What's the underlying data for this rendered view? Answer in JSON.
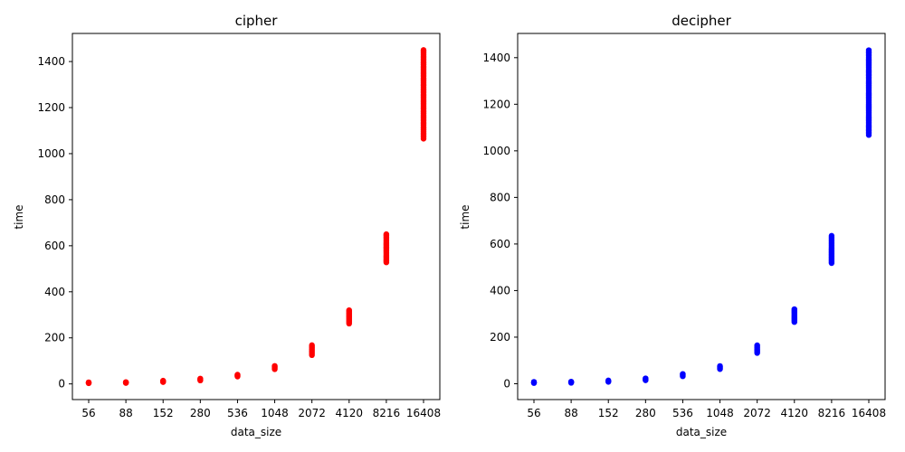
{
  "chart_data": [
    {
      "type": "scatter",
      "title": "cipher",
      "xlabel": "data_size",
      "ylabel": "time",
      "color": "#ff0000",
      "x_categories": [
        "56",
        "88",
        "152",
        "280",
        "536",
        "1048",
        "2072",
        "4120",
        "8216",
        "16408"
      ],
      "y_ticks": [
        "0",
        "200",
        "400",
        "600",
        "800",
        "1000",
        "1200",
        "1400"
      ],
      "ylim": [
        -68,
        1522
      ],
      "grid": false,
      "points_ranges": [
        {
          "x": "56",
          "y_min": 3,
          "y_max": 7
        },
        {
          "x": "88",
          "y_min": 4,
          "y_max": 8
        },
        {
          "x": "152",
          "y_min": 8,
          "y_max": 14
        },
        {
          "x": "280",
          "y_min": 15,
          "y_max": 23
        },
        {
          "x": "536",
          "y_min": 32,
          "y_max": 40
        },
        {
          "x": "1048",
          "y_min": 64,
          "y_max": 78
        },
        {
          "x": "2072",
          "y_min": 125,
          "y_max": 168
        },
        {
          "x": "4120",
          "y_min": 262,
          "y_max": 320
        },
        {
          "x": "8216",
          "y_min": 528,
          "y_max": 650
        },
        {
          "x": "16408",
          "y_min": 1065,
          "y_max": 1450
        }
      ]
    },
    {
      "type": "scatter",
      "title": "decipher",
      "xlabel": "data_size",
      "ylabel": "time",
      "color": "#0000ff",
      "x_categories": [
        "56",
        "88",
        "152",
        "280",
        "536",
        "1048",
        "2072",
        "4120",
        "8216",
        "16408"
      ],
      "y_ticks": [
        "0",
        "200",
        "400",
        "600",
        "800",
        "1000",
        "1200",
        "1400"
      ],
      "ylim": [
        -68,
        1504
      ],
      "grid": false,
      "points_ranges": [
        {
          "x": "56",
          "y_min": 3,
          "y_max": 8
        },
        {
          "x": "88",
          "y_min": 4,
          "y_max": 9
        },
        {
          "x": "152",
          "y_min": 8,
          "y_max": 14
        },
        {
          "x": "280",
          "y_min": 15,
          "y_max": 23
        },
        {
          "x": "536",
          "y_min": 32,
          "y_max": 42
        },
        {
          "x": "1048",
          "y_min": 63,
          "y_max": 76
        },
        {
          "x": "2072",
          "y_min": 132,
          "y_max": 165
        },
        {
          "x": "4120",
          "y_min": 265,
          "y_max": 320
        },
        {
          "x": "8216",
          "y_min": 518,
          "y_max": 635
        },
        {
          "x": "16408",
          "y_min": 1068,
          "y_max": 1432
        }
      ]
    }
  ]
}
